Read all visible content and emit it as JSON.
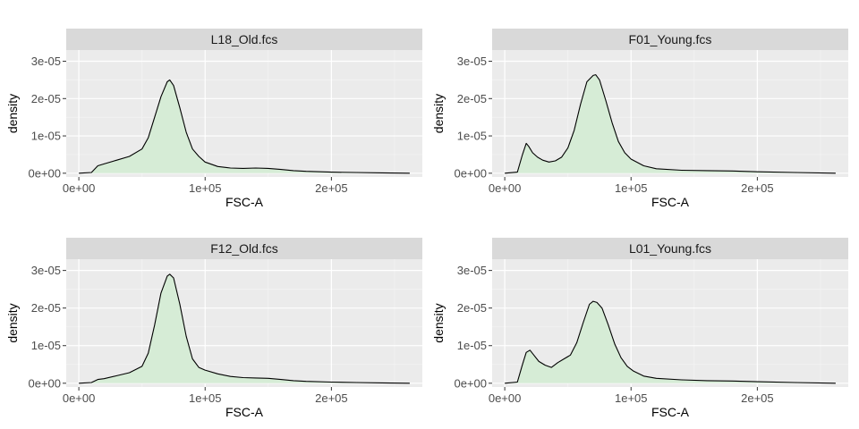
{
  "chart_data": {
    "type": "area",
    "layout": "2x2 facet grid",
    "grid": true,
    "colors": {
      "panel_background": "#ebebeb",
      "strip_background": "#d9d9d9",
      "grid_major": "#ffffff",
      "grid_minor": "#f4f4f4",
      "fill": "#d6ecd6",
      "line": "#000000"
    },
    "xlabel": "FSC-A",
    "ylabel": "density",
    "xlim": [
      -10000,
      272000
    ],
    "ylim": [
      -1e-06,
      3.3e-05
    ],
    "x_ticks": [
      {
        "value": 0,
        "label": "0e+00"
      },
      {
        "value": 100000,
        "label": "1e+05"
      },
      {
        "value": 200000,
        "label": "2e+05"
      }
    ],
    "y_ticks": [
      {
        "value": 0,
        "label": "0e+00"
      },
      {
        "value": 1e-05,
        "label": "1e-05"
      },
      {
        "value": 2e-05,
        "label": "2e-05"
      },
      {
        "value": 3e-05,
        "label": "3e-05"
      }
    ],
    "panels": [
      {
        "title": "L18_Old.fcs",
        "x": [
          0,
          10000,
          15000,
          20000,
          30000,
          40000,
          50000,
          55000,
          60000,
          65000,
          70000,
          72000,
          75000,
          80000,
          85000,
          90000,
          95000,
          100000,
          110000,
          120000,
          130000,
          140000,
          150000,
          160000,
          170000,
          180000,
          200000,
          220000,
          240000,
          262000
        ],
        "y": [
          0,
          2e-07,
          2e-06,
          2.5e-06,
          3.5e-06,
          4.5e-06,
          6.5e-06,
          9.5e-06,
          1.5e-05,
          2.05e-05,
          2.45e-05,
          2.5e-05,
          2.35e-05,
          1.75e-05,
          1.1e-05,
          6.5e-06,
          4.5e-06,
          3e-06,
          1.8e-06,
          1.4e-06,
          1.3e-06,
          1.4e-06,
          1.3e-06,
          1e-06,
          7e-07,
          5e-07,
          3e-07,
          2e-07,
          1e-07,
          0
        ]
      },
      {
        "title": "F01_Young.fcs",
        "x": [
          0,
          10000,
          14000,
          17000,
          19000,
          22000,
          26000,
          30000,
          35000,
          40000,
          45000,
          50000,
          55000,
          60000,
          65000,
          70000,
          72000,
          75000,
          80000,
          85000,
          90000,
          95000,
          100000,
          110000,
          120000,
          140000,
          160000,
          180000,
          200000,
          230000,
          262000
        ],
        "y": [
          0,
          3e-07,
          5e-06,
          8e-06,
          7.2e-06,
          5.5e-06,
          4.3e-06,
          3.5e-06,
          3e-06,
          3.3e-06,
          4.3e-06,
          6.8e-06,
          1.15e-05,
          1.85e-05,
          2.45e-05,
          2.62e-05,
          2.64e-05,
          2.5e-05,
          1.95e-05,
          1.35e-05,
          8.5e-06,
          5.5e-06,
          3.8e-06,
          2e-06,
          1.2e-06,
          8e-07,
          7e-07,
          6e-07,
          4e-07,
          2e-07,
          0
        ]
      },
      {
        "title": "F12_Old.fcs",
        "x": [
          0,
          10000,
          15000,
          20000,
          30000,
          40000,
          50000,
          55000,
          60000,
          65000,
          70000,
          72000,
          75000,
          80000,
          85000,
          90000,
          95000,
          100000,
          110000,
          120000,
          130000,
          140000,
          150000,
          160000,
          170000,
          180000,
          200000,
          220000,
          240000,
          262000
        ],
        "y": [
          0,
          2e-07,
          1e-06,
          1.2e-06,
          2e-06,
          2.8e-06,
          4.5e-06,
          8e-06,
          1.55e-05,
          2.4e-05,
          2.85e-05,
          2.9e-05,
          2.8e-05,
          2.1e-05,
          1.25e-05,
          6.5e-06,
          4.2e-06,
          3.5e-06,
          2.5e-06,
          1.8e-06,
          1.5e-06,
          1.4e-06,
          1.3e-06,
          1e-06,
          7e-07,
          5e-07,
          3e-07,
          2e-07,
          1e-07,
          0
        ]
      },
      {
        "title": "L01_Young.fcs",
        "x": [
          0,
          10000,
          14000,
          17000,
          20000,
          23000,
          27000,
          32000,
          37000,
          42000,
          47000,
          52000,
          57000,
          62000,
          67000,
          70000,
          73000,
          77000,
          82000,
          87000,
          92000,
          97000,
          102000,
          110000,
          120000,
          140000,
          160000,
          180000,
          200000,
          230000,
          262000
        ],
        "y": [
          0,
          3e-07,
          5e-06,
          8.2e-06,
          8.8e-06,
          7.5e-06,
          5.8e-06,
          4.8e-06,
          4.2e-06,
          5.5e-06,
          6.5e-06,
          7.5e-06,
          1.08e-05,
          1.6e-05,
          2.1e-05,
          2.18e-05,
          2.15e-05,
          2e-05,
          1.55e-05,
          1.05e-05,
          6.8e-06,
          4.5e-06,
          3.2e-06,
          1.9e-06,
          1.3e-06,
          9e-07,
          7e-07,
          6e-07,
          4e-07,
          2e-07,
          0
        ]
      }
    ]
  }
}
